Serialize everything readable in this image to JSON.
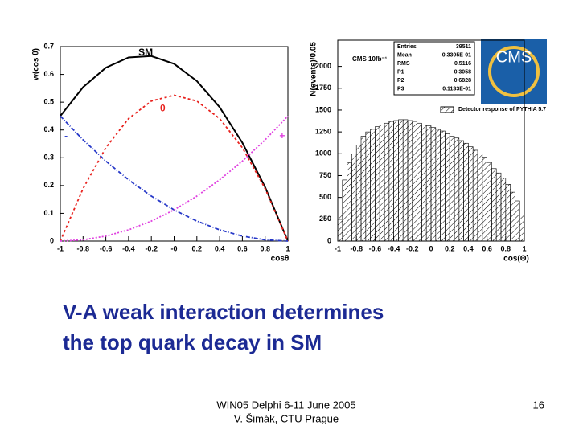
{
  "chart_data": [
    {
      "type": "line",
      "ylabel": "w(cos θ)",
      "xlabel": "cosθ",
      "x": [
        -1,
        -0.8,
        -0.6,
        -0.4,
        -0.2,
        0,
        0.2,
        0.4,
        0.6,
        0.8,
        1
      ],
      "series": [
        {
          "name": "SM",
          "color": "#000000",
          "values": [
            0.45,
            0.554,
            0.624,
            0.661,
            0.666,
            0.638,
            0.576,
            0.482,
            0.354,
            0.194,
            0
          ]
        },
        {
          "name": "0",
          "color": "#e8221e",
          "values": [
            0,
            0.189,
            0.336,
            0.441,
            0.504,
            0.525,
            0.504,
            0.441,
            0.336,
            0.189,
            0
          ]
        },
        {
          "name": "-",
          "color": "#2638c8",
          "values": [
            0.45,
            0.3645,
            0.288,
            0.2205,
            0.162,
            0.1125,
            0.072,
            0.0405,
            0.018,
            0.0045,
            0
          ]
        },
        {
          "name": "+",
          "color": "#e040e0",
          "values": [
            0,
            0.0045,
            0.018,
            0.0405,
            0.072,
            0.1125,
            0.162,
            0.2205,
            0.288,
            0.3645,
            0.45
          ]
        }
      ],
      "xlim": [
        -1,
        1
      ],
      "ylim": [
        0,
        0.7
      ],
      "xticks": [
        -1,
        -0.8,
        -0.6,
        -0.4,
        -0.2,
        {
          "value": 0,
          "label": "-0"
        },
        0.2,
        0.4,
        0.6,
        0.8,
        1
      ],
      "yticks": [
        0,
        0.1,
        0.2,
        0.3,
        0.4,
        0.5,
        0.6,
        0.7
      ]
    },
    {
      "type": "histogram",
      "title": "CMS 10fb⁻¹",
      "ylabel": "N(events)/0.05",
      "xlabel": "cos(Θ)",
      "legend": "Detector response of PYTHIA 5.7",
      "stats": [
        [
          "Entries",
          "39511"
        ],
        [
          "Mean",
          "-0.3305E-01"
        ],
        [
          "RMS",
          "0.5116"
        ],
        [
          "P1",
          "0.3058"
        ],
        [
          "P2",
          "0.6828"
        ],
        [
          "P3",
          "0.1133E-01"
        ]
      ],
      "bins": [
        -1,
        -0.95,
        -0.9,
        -0.85,
        -0.8,
        -0.75,
        -0.7,
        -0.65,
        -0.6,
        -0.55,
        -0.5,
        -0.45,
        -0.4,
        -0.35,
        -0.3,
        -0.25,
        -0.2,
        -0.15,
        -0.1,
        -0.05,
        0,
        0.05,
        0.1,
        0.15,
        0.2,
        0.25,
        0.3,
        0.35,
        0.4,
        0.45,
        0.5,
        0.55,
        0.6,
        0.65,
        0.7,
        0.75,
        0.8,
        0.85,
        0.9,
        0.95,
        1
      ],
      "values": [
        300,
        700,
        900,
        1000,
        1100,
        1200,
        1250,
        1280,
        1310,
        1330,
        1350,
        1370,
        1380,
        1390,
        1390,
        1380,
        1370,
        1350,
        1330,
        1320,
        1300,
        1280,
        1260,
        1230,
        1200,
        1180,
        1150,
        1120,
        1080,
        1040,
        1000,
        960,
        900,
        830,
        780,
        720,
        650,
        560,
        460,
        300
      ],
      "color": "#000000",
      "xlim": [
        -1,
        1
      ],
      "ylim": [
        0,
        2300
      ],
      "xticks": [
        -1,
        -0.8,
        -0.6,
        -0.4,
        -0.2,
        0,
        0.2,
        0.4,
        0.6,
        0.8,
        1
      ],
      "yticks": [
        0,
        250,
        500,
        750,
        1000,
        1250,
        1500,
        1750,
        2000
      ]
    }
  ],
  "logo": "CMS",
  "heading": [
    "V-A weak interaction determines",
    "the top quark decay in SM"
  ],
  "footer": [
    "WIN05 Delphi 6-11 June 2005",
    "V. Šimák, CTU Prague"
  ],
  "page_number": "16"
}
